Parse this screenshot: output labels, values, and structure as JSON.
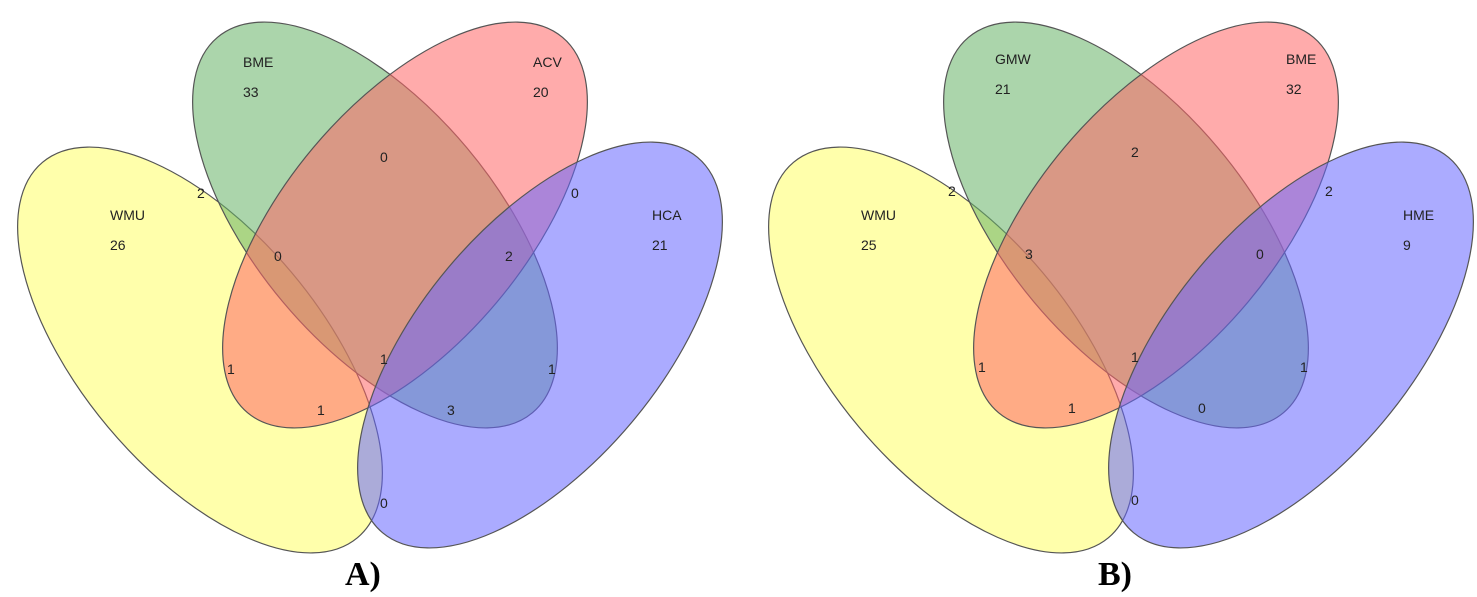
{
  "panels": [
    {
      "label": "A)",
      "sets": [
        {
          "name": "WMU",
          "count": "26",
          "color": "#ffff66"
        },
        {
          "name": "BME",
          "count": "33",
          "color": "#66b366"
        },
        {
          "name": "ACV",
          "count": "20",
          "color": "#ff6666"
        },
        {
          "name": "HCA",
          "count": "21",
          "color": "#6666ff"
        }
      ],
      "regions": {
        "ab": "2",
        "ac": "1",
        "ad": "0",
        "bc": "0",
        "bd": "2",
        "cd": "0",
        "abc": "0",
        "abd": "1",
        "acd": "3",
        "bcd": "1",
        "abcd": "1"
      }
    },
    {
      "label": "B)",
      "sets": [
        {
          "name": "WMU",
          "count": "25",
          "color": "#ffff66"
        },
        {
          "name": "GMW",
          "count": "21",
          "color": "#66b366"
        },
        {
          "name": "BME",
          "count": "32",
          "color": "#ff6666"
        },
        {
          "name": "HME",
          "count": "9",
          "color": "#6666ff"
        }
      ],
      "regions": {
        "ab": "2",
        "ac": "1",
        "ad": "0",
        "bc": "2",
        "bd": "0",
        "cd": "2",
        "abc": "3",
        "abd": "1",
        "acd": "0",
        "bcd": "1",
        "abcd": "1"
      }
    }
  ]
}
